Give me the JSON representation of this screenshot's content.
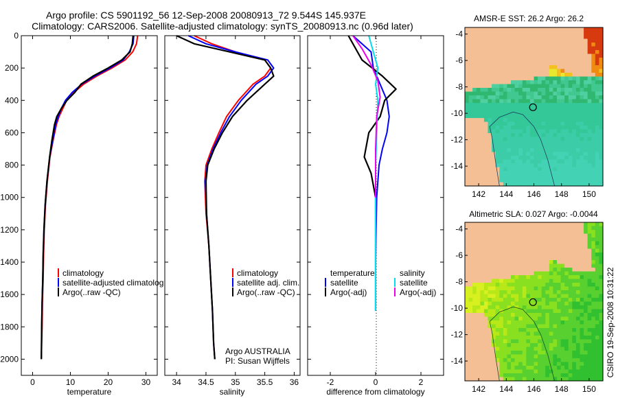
{
  "header": {
    "title_line1": "Argo profile: CS 5901192_56 12-Sep-2008 20080913_72 9.544S 145.937E",
    "title_line2": "Climatology: CARS2006. Satellite-adjusted climatology: synTS_20080913.nc (0.96d later)"
  },
  "footer_label": "CSIRO 19-Sep-2008 10:31:22",
  "colors": {
    "climatology": "#ff0000",
    "satellite": "#0000ff",
    "argo": "#000000",
    "satellite_sal": "#00ddee",
    "argo_sal": "#ee00ee",
    "land": "#f4bf94"
  },
  "chart_data": [
    {
      "type": "line",
      "id": "temperature",
      "xlabel": "temperature",
      "xlim": [
        -3,
        33
      ],
      "xticks": [
        0,
        10,
        20,
        30
      ],
      "ylim": [
        0,
        2100
      ],
      "yticks": [
        0,
        200,
        400,
        600,
        800,
        1000,
        1200,
        1400,
        1600,
        1800,
        2000
      ],
      "y_reversed": true,
      "legend": [
        "climatology",
        "satellite-adjusted climatolog",
        "Argo(..raw -QC)"
      ],
      "series": [
        {
          "name": "climatology",
          "color": "#ff0000",
          "x": [
            27.8,
            27.5,
            26.5,
            24.5,
            21.0,
            17.0,
            13.5,
            11.0,
            9.0,
            8.0,
            7.0,
            6.3,
            5.4,
            4.6,
            3.9,
            3.4,
            3.1,
            2.9,
            2.8,
            2.6,
            2.5,
            2.3
          ],
          "y": [
            0,
            50,
            100,
            150,
            200,
            250,
            300,
            350,
            400,
            450,
            500,
            550,
            650,
            750,
            900,
            1050,
            1200,
            1350,
            1500,
            1650,
            1800,
            2000
          ]
        },
        {
          "name": "satellite-adjusted climatology",
          "color": "#0000ff",
          "x": [
            26.8,
            26.6,
            25.6,
            24.0,
            20.5,
            16.5,
            13.0,
            10.5,
            8.7,
            7.6,
            6.8,
            6.1,
            5.3,
            4.5,
            3.8,
            3.3,
            3.0,
            2.8,
            2.7,
            2.5,
            2.4,
            2.3
          ],
          "y": [
            0,
            50,
            100,
            150,
            200,
            250,
            300,
            350,
            400,
            450,
            500,
            550,
            650,
            750,
            900,
            1050,
            1200,
            1350,
            1500,
            1650,
            1800,
            2000
          ]
        },
        {
          "name": "Argo(..raw -QC)",
          "color": "#000000",
          "x": [
            26.6,
            26.4,
            25.8,
            23.6,
            20.0,
            16.0,
            12.8,
            11.2,
            9.1,
            7.6,
            6.4,
            5.8,
            5.1,
            4.5,
            3.8,
            3.3,
            3.0,
            2.8,
            2.7,
            2.5,
            2.4,
            2.3
          ],
          "y": [
            0,
            50,
            100,
            150,
            200,
            250,
            300,
            350,
            400,
            450,
            500,
            550,
            650,
            750,
            900,
            1050,
            1200,
            1350,
            1500,
            1650,
            1800,
            2000
          ]
        }
      ]
    },
    {
      "type": "line",
      "id": "salinity",
      "xlabel": "salinity",
      "xlim": [
        33.8,
        36.1
      ],
      "xticks": [
        34,
        34.5,
        35,
        35.5,
        36
      ],
      "ylim": [
        0,
        2100
      ],
      "y_reversed": true,
      "legend": [
        "climatology",
        "satellite adj. clim.",
        "Argo(..raw -QC)"
      ],
      "annotation": [
        "Argo AUSTRALIA",
        "PI: Susan Wijffels"
      ],
      "series": [
        {
          "name": "climatology",
          "color": "#ff0000",
          "x": [
            34.3,
            34.6,
            35.0,
            35.5,
            35.6,
            35.5,
            35.3,
            35.05,
            34.85,
            34.72,
            34.6,
            34.5,
            34.48,
            34.5,
            34.55,
            34.58,
            34.61,
            34.63,
            34.65
          ],
          "y": [
            0,
            50,
            100,
            150,
            200,
            250,
            300,
            400,
            500,
            600,
            700,
            800,
            900,
            1100,
            1300,
            1500,
            1700,
            1900,
            2000
          ]
        },
        {
          "name": "satellite adj. clim.",
          "color": "#0000ff",
          "x": [
            34.2,
            34.5,
            35.0,
            35.55,
            35.65,
            35.55,
            35.35,
            35.1,
            34.9,
            34.75,
            34.62,
            34.52,
            34.49,
            34.51,
            34.55,
            34.58,
            34.61,
            34.63,
            34.65
          ],
          "y": [
            0,
            50,
            100,
            150,
            200,
            250,
            300,
            400,
            500,
            600,
            700,
            800,
            900,
            1100,
            1300,
            1500,
            1700,
            1900,
            2000
          ]
        },
        {
          "name": "Argo(..raw -QC)",
          "color": "#000000",
          "x": [
            34.0,
            34.3,
            34.9,
            35.5,
            35.6,
            35.65,
            35.5,
            35.2,
            34.95,
            34.78,
            34.64,
            34.53,
            34.5,
            34.51,
            34.55,
            34.58,
            34.61,
            34.63,
            34.65
          ],
          "y": [
            0,
            50,
            100,
            150,
            200,
            250,
            300,
            400,
            500,
            600,
            700,
            800,
            900,
            1100,
            1300,
            1500,
            1700,
            1900,
            2000
          ]
        }
      ]
    },
    {
      "type": "line",
      "id": "difference",
      "xlabel": "difference from climatology",
      "xlim": [
        -3,
        3
      ],
      "xticks": [
        -2,
        0,
        2
      ],
      "ylim": [
        0,
        2100
      ],
      "y_reversed": true,
      "legend_left": [
        "temperature",
        "satellite",
        "Argo(-adj)"
      ],
      "legend_right": [
        "salinity",
        "satellite",
        "Argo(-adj)"
      ],
      "series": [
        {
          "name": "temperature satellite",
          "color": "#0000ff",
          "x": [
            -1.0,
            -0.2,
            -0.1,
            0.2,
            0.5,
            0.6,
            0.5,
            0.3,
            0.15,
            0.05,
            0.02,
            0.0,
            0.0,
            0.0
          ],
          "y": [
            0,
            100,
            200,
            300,
            400,
            500,
            600,
            700,
            800,
            1000,
            1200,
            1400,
            1600,
            1700
          ]
        },
        {
          "name": "temperature Argo(-adj)",
          "color": "#000000",
          "x": [
            -1.2,
            -0.6,
            0.3,
            0.9,
            0.4,
            0.2,
            -0.3,
            -0.5,
            -0.2,
            0.0,
            0.0,
            0.0,
            0.0,
            0.0
          ],
          "y": [
            0,
            150,
            250,
            330,
            400,
            500,
            600,
            750,
            850,
            1000,
            1200,
            1400,
            1600,
            1700
          ]
        },
        {
          "name": "salinity satellite",
          "color": "#00ddee",
          "x": [
            -0.3,
            -0.1,
            0.1,
            0.0,
            0.1,
            0.05,
            0.0,
            0.0,
            0.0
          ],
          "y": [
            0,
            100,
            200,
            300,
            400,
            600,
            800,
            1200,
            1700
          ]
        },
        {
          "name": "salinity Argo(-adj)",
          "color": "#ee00ee",
          "x": [
            -1.0,
            -0.6,
            -0.2,
            0.1,
            0.2,
            0.05,
            0.0,
            0.0
          ],
          "y": [
            0,
            80,
            180,
            280,
            380,
            500,
            700,
            1000
          ]
        }
      ]
    },
    {
      "type": "heatmap",
      "id": "sst_map",
      "title": "AMSR-E SST: 26.2 Argo: 26.2",
      "xlim": [
        141,
        151
      ],
      "ylim": [
        -15.5,
        -3.5
      ],
      "xticks": [
        142,
        144,
        146,
        148,
        150
      ],
      "yticks": [
        -4,
        -6,
        -8,
        -10,
        -12,
        -14
      ],
      "marker": {
        "lon": 145.937,
        "lat": -9.544
      }
    },
    {
      "type": "heatmap",
      "id": "sla_map",
      "title": "Altimetric SLA: 0.027 Argo: -0.0044",
      "xlim": [
        141,
        151
      ],
      "ylim": [
        -15.5,
        -3.5
      ],
      "xticks": [
        142,
        144,
        146,
        148,
        150
      ],
      "yticks": [
        -4,
        -6,
        -8,
        -10,
        -12,
        -14
      ],
      "marker": {
        "lon": 145.937,
        "lat": -9.544
      }
    }
  ]
}
